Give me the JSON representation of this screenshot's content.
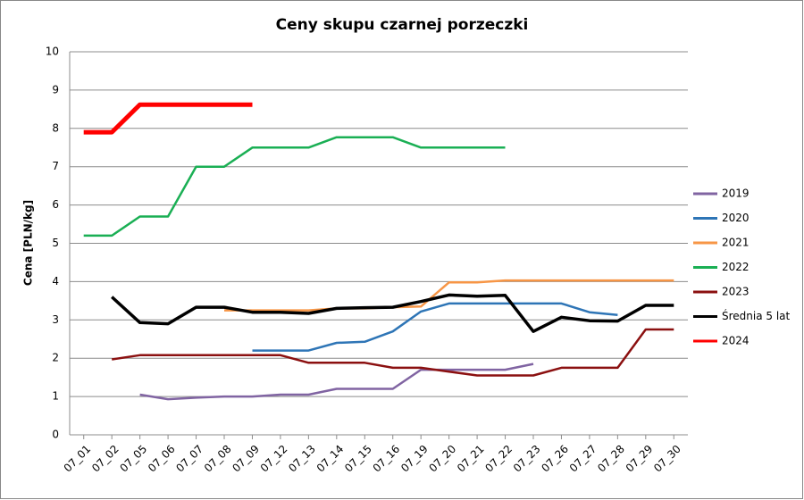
{
  "chart_data": {
    "type": "line",
    "title": "Ceny skupu czarnej porzeczki",
    "y_label": "Cena [PLN/kg]",
    "categories": [
      "07_01",
      "07_02",
      "07_05",
      "07_06",
      "07_07",
      "07_08",
      "07_09",
      "07_12",
      "07_13",
      "07_14",
      "07_15",
      "07_16",
      "07_19",
      "07_20",
      "07_21",
      "07_22",
      "07_23",
      "07_26",
      "07_27",
      "07_28",
      "07_29",
      "07_30"
    ],
    "ylim": [
      0,
      10
    ],
    "yticks": [
      0,
      1,
      2,
      3,
      4,
      5,
      6,
      7,
      8,
      9,
      10
    ],
    "grid": true,
    "legend": "right",
    "series": [
      {
        "name": "2019",
        "color": "#8064a2",
        "width": 2.5,
        "values": [
          null,
          null,
          1.05,
          0.93,
          0.97,
          1.0,
          1.0,
          1.05,
          1.05,
          1.2,
          1.2,
          1.2,
          1.7,
          1.7,
          1.7,
          1.7,
          1.85,
          null,
          null,
          null,
          null,
          null
        ]
      },
      {
        "name": "2020",
        "color": "#2e75b6",
        "width": 2.5,
        "values": [
          null,
          null,
          null,
          null,
          null,
          null,
          2.2,
          2.2,
          2.2,
          2.4,
          2.43,
          2.7,
          3.22,
          3.43,
          3.43,
          3.43,
          3.43,
          3.43,
          3.2,
          3.13,
          null,
          null
        ]
      },
      {
        "name": "2021",
        "color": "#f79646",
        "width": 2.5,
        "values": [
          null,
          null,
          null,
          null,
          null,
          3.25,
          3.25,
          3.25,
          3.25,
          3.3,
          3.3,
          3.33,
          3.35,
          3.98,
          3.98,
          4.03,
          4.03,
          4.03,
          4.03,
          4.03,
          4.03,
          4.03
        ]
      },
      {
        "name": "2022",
        "color": "#1aaf54",
        "width": 2.5,
        "values": [
          5.2,
          5.2,
          5.7,
          5.7,
          7.0,
          7.0,
          7.5,
          7.5,
          7.5,
          7.77,
          7.77,
          7.77,
          7.5,
          7.5,
          7.5,
          7.5,
          null,
          null,
          null,
          null,
          null,
          null
        ]
      },
      {
        "name": "2023",
        "color": "#8b1010",
        "width": 2.5,
        "values": [
          null,
          1.97,
          2.08,
          2.08,
          2.08,
          2.08,
          2.08,
          2.08,
          1.88,
          1.88,
          1.88,
          1.75,
          1.75,
          1.65,
          1.55,
          1.55,
          1.55,
          1.75,
          1.75,
          1.75,
          2.75,
          2.75
        ]
      },
      {
        "name": "Średnia 5 lat",
        "color": "#000000",
        "width": 3.5,
        "values": [
          null,
          3.6,
          2.93,
          2.9,
          3.33,
          3.33,
          3.2,
          3.2,
          3.17,
          3.3,
          3.32,
          3.33,
          3.48,
          3.65,
          3.62,
          3.64,
          2.7,
          3.07,
          2.98,
          2.97,
          3.38,
          3.38
        ]
      },
      {
        "name": "2024",
        "color": "#ff0000",
        "width": 5,
        "values": [
          7.9,
          7.9,
          8.62,
          8.62,
          8.62,
          8.62,
          8.62,
          null,
          null,
          null,
          null,
          null,
          null,
          null,
          null,
          null,
          null,
          null,
          null,
          null,
          null,
          null
        ]
      }
    ]
  }
}
